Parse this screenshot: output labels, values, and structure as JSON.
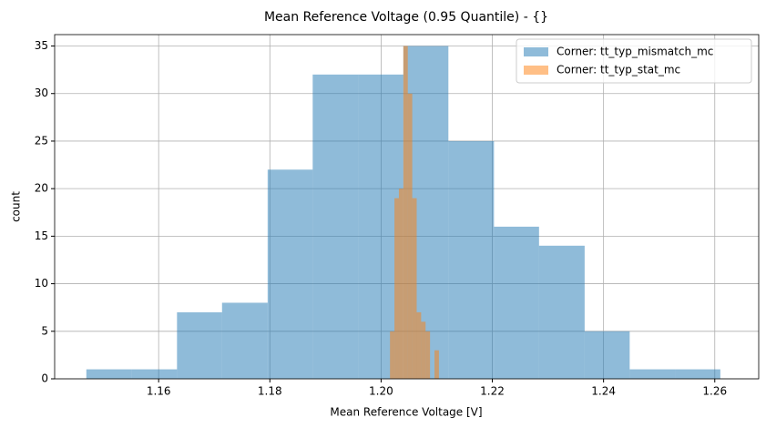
{
  "chart_data": {
    "type": "histogram",
    "title": "Mean Reference Voltage (0.95 Quantile) - {}",
    "xlabel": "Mean Reference Voltage [V]",
    "ylabel": "count",
    "series": [
      {
        "name": "Corner: tt_typ_mismatch_mc",
        "color": "#1f77b4",
        "opacity": 0.5,
        "bins": [
          1.147,
          1.1551,
          1.1633,
          1.1714,
          1.1796,
          1.1877,
          1.1959,
          1.204,
          1.2121,
          1.2203,
          1.2284,
          1.2366,
          1.2447,
          1.2529,
          1.261
        ],
        "values": [
          1,
          1,
          7,
          8,
          22,
          32,
          32,
          35,
          25,
          16,
          14,
          5,
          1,
          1
        ]
      },
      {
        "name": "Corner: tt_typ_stat_mc",
        "color": "#ff7f0e",
        "opacity": 0.5,
        "bins": [
          1.2016,
          1.2024,
          1.2032,
          1.204,
          1.2048,
          1.2056,
          1.2064,
          1.2072,
          1.208,
          1.2088,
          1.2096,
          1.2104
        ],
        "values": [
          5,
          19,
          20,
          35,
          30,
          19,
          7,
          6,
          5,
          0,
          3
        ]
      }
    ],
    "xlim": [
      1.1413,
      1.2679
    ],
    "ylim": [
      0,
      36.2
    ],
    "xticks": [
      {
        "value": 1.16,
        "label": "1.16"
      },
      {
        "value": 1.18,
        "label": "1.18"
      },
      {
        "value": 1.2,
        "label": "1.20"
      },
      {
        "value": 1.22,
        "label": "1.22"
      },
      {
        "value": 1.24,
        "label": "1.24"
      },
      {
        "value": 1.26,
        "label": "1.26"
      }
    ],
    "yticks": [
      0,
      5,
      10,
      15,
      20,
      25,
      30,
      35
    ],
    "grid": true,
    "legend": "upper right"
  }
}
